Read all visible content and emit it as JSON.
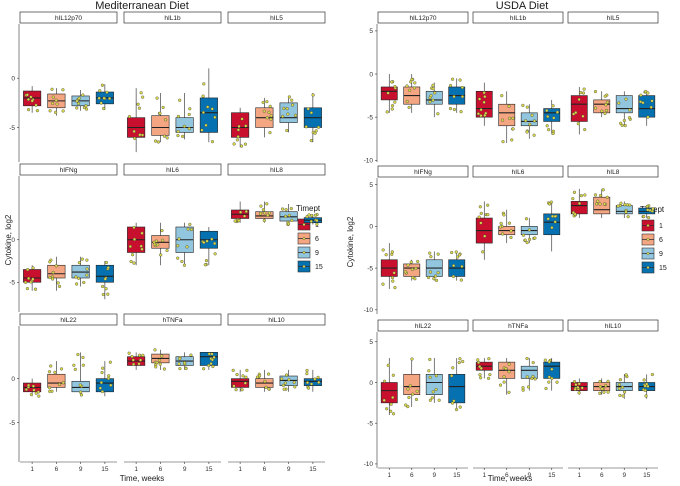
{
  "chart_data": [
    {
      "type": "boxplot",
      "title": "Mediterranean Diet",
      "xlabel": "Time, weeks",
      "ylabel": "Cytokine, log2",
      "categories": [
        "1",
        "6",
        "9",
        "15"
      ],
      "panel_rows": [
        {
          "ylim": [
            -8.5,
            5.5
          ],
          "yticks": [
            0,
            -5
          ],
          "panels": [
            {
              "name": "hIL12p70",
              "boxes": [
                {
                  "min": -3.5,
                  "q1": -2.8,
                  "median": -2.0,
                  "q3": -1.3,
                  "max": -0.8
                },
                {
                  "min": -3.8,
                  "q1": -3.0,
                  "median": -2.3,
                  "q3": -1.6,
                  "max": -1.0
                },
                {
                  "min": -3.3,
                  "q1": -2.8,
                  "median": -2.3,
                  "q3": -1.8,
                  "max": -1.2
                },
                {
                  "min": -3.2,
                  "q1": -2.6,
                  "median": -2.0,
                  "q3": -1.4,
                  "max": -0.6
                }
              ]
            },
            {
              "name": "hIL1b",
              "boxes": [
                {
                  "min": -7.5,
                  "q1": -6.0,
                  "median": -5.0,
                  "q3": -4.0,
                  "max": -1.0
                },
                {
                  "min": -6.5,
                  "q1": -5.8,
                  "median": -5.0,
                  "q3": -3.8,
                  "max": -1.5
                },
                {
                  "min": -6.2,
                  "q1": -5.5,
                  "median": -5.0,
                  "q3": -4.0,
                  "max": -1.5
                },
                {
                  "min": -6.5,
                  "q1": -5.5,
                  "median": -3.5,
                  "q3": -2.0,
                  "max": 1.0
                }
              ]
            },
            {
              "name": "hIL5",
              "boxes": [
                {
                  "min": -7.0,
                  "q1": -6.0,
                  "median": -5.0,
                  "q3": -3.5,
                  "max": -3.0
                },
                {
                  "min": -6.0,
                  "q1": -5.0,
                  "median": -4.0,
                  "q3": -3.0,
                  "max": -2.0
                },
                {
                  "min": -5.5,
                  "q1": -4.5,
                  "median": -4.0,
                  "q3": -2.5,
                  "max": -1.8
                },
                {
                  "min": -6.5,
                  "q1": -5.0,
                  "median": -4.0,
                  "q3": -3.0,
                  "max": -1.5
                }
              ]
            }
          ]
        },
        {
          "ylim": [
            -8.5,
            7.5
          ],
          "yticks": [
            0,
            -5
          ],
          "panels": [
            {
              "name": "hIFNg",
              "boxes": [
                {
                  "min": -6.0,
                  "q1": -5.0,
                  "median": -4.5,
                  "q3": -3.5,
                  "max": -3.0
                },
                {
                  "min": -6.0,
                  "q1": -4.5,
                  "median": -4.0,
                  "q3": -3.0,
                  "max": -2.0
                },
                {
                  "min": -5.5,
                  "q1": -4.5,
                  "median": -3.8,
                  "q3": -3.0,
                  "max": -2.0
                },
                {
                  "min": -7.0,
                  "q1": -5.0,
                  "median": -4.3,
                  "q3": -3.0,
                  "max": -2.5
                }
              ]
            },
            {
              "name": "hIL6",
              "boxes": [
                {
                  "min": -3.0,
                  "q1": -1.5,
                  "median": 0.0,
                  "q3": 1.5,
                  "max": 2.0
                },
                {
                  "min": -3.0,
                  "q1": -1.0,
                  "median": -0.3,
                  "q3": 0.5,
                  "max": 2.0
                },
                {
                  "min": -3.0,
                  "q1": -1.5,
                  "median": 0.0,
                  "q3": 1.5,
                  "max": 2.0
                },
                {
                  "min": -3.0,
                  "q1": -1.0,
                  "median": 0.0,
                  "q3": 1.0,
                  "max": 1.5
                }
              ]
            },
            {
              "name": "hIL8",
              "boxes": [
                {
                  "min": 2.0,
                  "q1": 2.5,
                  "median": 3.0,
                  "q3": 3.5,
                  "max": 4.5
                },
                {
                  "min": 2.0,
                  "q1": 2.5,
                  "median": 2.8,
                  "q3": 3.3,
                  "max": 4.5
                },
                {
                  "min": 1.8,
                  "q1": 2.2,
                  "median": 2.7,
                  "q3": 3.3,
                  "max": 4.2
                },
                {
                  "min": 1.8,
                  "q1": 2.0,
                  "median": 2.3,
                  "q3": 2.6,
                  "max": 3.0
                }
              ]
            }
          ]
        },
        {
          "ylim": [
            -9.5,
            6.0
          ],
          "yticks": [
            0,
            -5
          ],
          "panels": [
            {
              "name": "hIL22",
              "boxes": [
                {
                  "min": -2.0,
                  "q1": -1.5,
                  "median": -1.0,
                  "q3": -0.5,
                  "max": 0.0
                },
                {
                  "min": -1.5,
                  "q1": -1.0,
                  "median": -0.5,
                  "q3": 0.5,
                  "max": 2.0
                },
                {
                  "min": -2.0,
                  "q1": -1.5,
                  "median": -1.0,
                  "q3": -0.3,
                  "max": 3.0
                },
                {
                  "min": -2.0,
                  "q1": -1.5,
                  "median": -0.5,
                  "q3": 0.0,
                  "max": 2.0
                }
              ]
            },
            {
              "name": "hTNFa",
              "boxes": [
                {
                  "min": 1.0,
                  "q1": 1.5,
                  "median": 2.0,
                  "q3": 2.5,
                  "max": 3.0
                },
                {
                  "min": 1.0,
                  "q1": 1.8,
                  "median": 2.3,
                  "q3": 2.8,
                  "max": 3.3
                },
                {
                  "min": 1.0,
                  "q1": 1.5,
                  "median": 2.0,
                  "q3": 2.5,
                  "max": 3.0
                },
                {
                  "min": 1.0,
                  "q1": 1.5,
                  "median": 2.5,
                  "q3": 3.0,
                  "max": 3.0
                }
              ]
            },
            {
              "name": "hIL10",
              "boxes": [
                {
                  "min": -1.5,
                  "q1": -1.0,
                  "median": -0.3,
                  "q3": 0.0,
                  "max": 1.0
                },
                {
                  "min": -1.5,
                  "q1": -1.0,
                  "median": -0.5,
                  "q3": 0.0,
                  "max": 1.0
                },
                {
                  "min": -1.5,
                  "q1": -0.8,
                  "median": -0.2,
                  "q3": 0.3,
                  "max": 1.0
                },
                {
                  "min": -1.5,
                  "q1": -0.8,
                  "median": -0.3,
                  "q3": 0.0,
                  "max": 1.0
                }
              ]
            }
          ]
        }
      ]
    },
    {
      "type": "boxplot",
      "title": "USDA Diet",
      "xlabel": "Time, weeks",
      "ylabel": "Cytokine, log2",
      "categories": [
        "1",
        "6",
        "9",
        "15"
      ],
      "panel_rows": [
        {
          "ylim": [
            -10.2,
            5.8
          ],
          "yticks": [
            5,
            0,
            -5,
            -10
          ],
          "panels": [
            {
              "name": "hIL12p70",
              "boxes": [
                {
                  "min": -4.5,
                  "q1": -3.0,
                  "median": -2.0,
                  "q3": -1.5,
                  "max": 0.0
                },
                {
                  "min": -4.5,
                  "q1": -3.5,
                  "median": -2.5,
                  "q3": -1.5,
                  "max": 0.0
                },
                {
                  "min": -5.0,
                  "q1": -3.5,
                  "median": -3.0,
                  "q3": -2.0,
                  "max": -1.0
                },
                {
                  "min": -4.5,
                  "q1": -3.5,
                  "median": -2.5,
                  "q3": -1.5,
                  "max": -0.5
                }
              ]
            },
            {
              "name": "hIL1b",
              "boxes": [
                {
                  "min": -6.0,
                  "q1": -5.0,
                  "median": -4.0,
                  "q3": -2.0,
                  "max": -1.0
                },
                {
                  "min": -8.0,
                  "q1": -6.0,
                  "median": -4.5,
                  "q3": -3.5,
                  "max": -2.0
                },
                {
                  "min": -7.5,
                  "q1": -6.0,
                  "median": -5.5,
                  "q3": -4.5,
                  "max": -3.5
                },
                {
                  "min": -7.0,
                  "q1": -5.5,
                  "median": -4.5,
                  "q3": -4.0,
                  "max": -3.0
                }
              ]
            },
            {
              "name": "hIL5",
              "boxes": [
                {
                  "min": -7.0,
                  "q1": -5.5,
                  "median": -3.5,
                  "q3": -2.5,
                  "max": -1.5
                },
                {
                  "min": -5.0,
                  "q1": -4.5,
                  "median": -3.5,
                  "q3": -3.0,
                  "max": -2.0
                },
                {
                  "min": -6.0,
                  "q1": -4.5,
                  "median": -4.0,
                  "q3": -2.5,
                  "max": -2.0
                },
                {
                  "min": -6.0,
                  "q1": -5.0,
                  "median": -4.0,
                  "q3": -2.5,
                  "max": -2.0
                }
              ]
            }
          ]
        },
        {
          "ylim": [
            -10.5,
            5.8
          ],
          "yticks": [
            5,
            0,
            -5,
            -10
          ],
          "panels": [
            {
              "name": "hIFNg",
              "boxes": [
                {
                  "min": -7.5,
                  "q1": -6.0,
                  "median": -5.0,
                  "q3": -4.0,
                  "max": -2.0
                },
                {
                  "min": -6.5,
                  "q1": -6.0,
                  "median": -5.0,
                  "q3": -4.5,
                  "max": -4.0
                },
                {
                  "min": -6.5,
                  "q1": -6.0,
                  "median": -5.0,
                  "q3": -4.0,
                  "max": -3.0
                },
                {
                  "min": -6.5,
                  "q1": -6.0,
                  "median": -5.0,
                  "q3": -4.0,
                  "max": -3.0
                }
              ]
            },
            {
              "name": "hIL6",
              "boxes": [
                {
                  "min": -4.0,
                  "q1": -2.0,
                  "median": -0.5,
                  "q3": 1.0,
                  "max": 3.0
                },
                {
                  "min": -2.0,
                  "q1": -1.0,
                  "median": -0.5,
                  "q3": 0.0,
                  "max": 2.0
                },
                {
                  "min": -2.0,
                  "q1": -1.0,
                  "median": -0.5,
                  "q3": 0.0,
                  "max": 1.0
                },
                {
                  "min": -3.0,
                  "q1": -1.0,
                  "median": 0.5,
                  "q3": 1.5,
                  "max": 3.0
                }
              ]
            },
            {
              "name": "hIL8",
              "boxes": [
                {
                  "min": 1.0,
                  "q1": 1.5,
                  "median": 2.5,
                  "q3": 3.0,
                  "max": 4.5
                },
                {
                  "min": 1.0,
                  "q1": 1.5,
                  "median": 2.0,
                  "q3": 3.5,
                  "max": 4.5
                },
                {
                  "min": 1.0,
                  "q1": 1.5,
                  "median": 1.8,
                  "q3": 2.5,
                  "max": 3.0
                },
                {
                  "min": 1.0,
                  "q1": 1.5,
                  "median": 1.8,
                  "q3": 2.2,
                  "max": 2.5
                }
              ]
            }
          ]
        },
        {
          "ylim": [
            -10.5,
            6.2
          ],
          "yticks": [
            5,
            0,
            -5,
            -10
          ],
          "panels": [
            {
              "name": "hIL22",
              "boxes": [
                {
                  "min": -4.0,
                  "q1": -2.5,
                  "median": -1.0,
                  "q3": 0.0,
                  "max": 3.0
                },
                {
                  "min": -3.0,
                  "q1": -1.5,
                  "median": -0.5,
                  "q3": 1.0,
                  "max": 3.0
                },
                {
                  "min": -2.5,
                  "q1": -1.5,
                  "median": 0.0,
                  "q3": 1.0,
                  "max": 3.0
                },
                {
                  "min": -3.5,
                  "q1": -2.5,
                  "median": -0.5,
                  "q3": 1.0,
                  "max": 3.0
                }
              ]
            },
            {
              "name": "hTNFa",
              "boxes": [
                {
                  "min": 0.5,
                  "q1": 1.5,
                  "median": 2.0,
                  "q3": 2.5,
                  "max": 3.0
                },
                {
                  "min": -1.5,
                  "q1": 0.5,
                  "median": 1.5,
                  "q3": 2.5,
                  "max": 3.0
                },
                {
                  "min": -1.0,
                  "q1": 0.5,
                  "median": 1.5,
                  "q3": 2.0,
                  "max": 3.0
                },
                {
                  "min": -1.0,
                  "q1": 0.5,
                  "median": 2.0,
                  "q3": 2.5,
                  "max": 3.0
                }
              ]
            },
            {
              "name": "hIL10",
              "boxes": [
                {
                  "min": -1.5,
                  "q1": -1.0,
                  "median": -0.5,
                  "q3": 0.0,
                  "max": 0.5
                },
                {
                  "min": -1.5,
                  "q1": -1.0,
                  "median": -0.5,
                  "q3": 0.0,
                  "max": 0.5
                },
                {
                  "min": -2.0,
                  "q1": -1.0,
                  "median": -0.5,
                  "q3": 0.0,
                  "max": 1.0
                },
                {
                  "min": -2.0,
                  "q1": -1.0,
                  "median": -0.5,
                  "q3": 0.0,
                  "max": 1.0
                }
              ]
            }
          ]
        }
      ]
    }
  ],
  "legend": {
    "title": "Timept",
    "entries": [
      {
        "label": "1",
        "color": "#c8102e"
      },
      {
        "label": "6",
        "color": "#f4a582"
      },
      {
        "label": "9",
        "color": "#92c5de"
      },
      {
        "label": "15",
        "color": "#0571b0"
      }
    ]
  },
  "point_color": "#d8d84a"
}
